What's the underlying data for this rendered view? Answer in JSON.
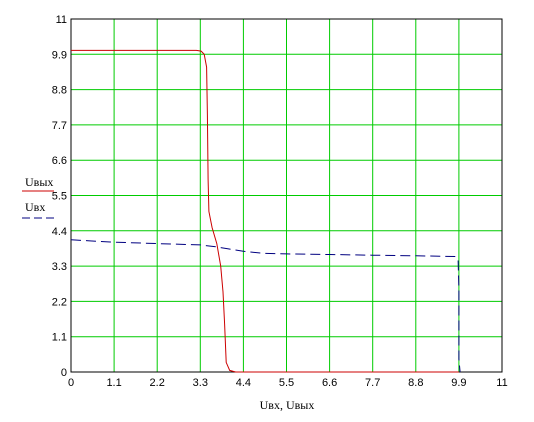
{
  "chart_data": {
    "type": "line",
    "xlabel": "Uвх, Uвых",
    "xlim": [
      0,
      11
    ],
    "ylim": [
      0,
      11
    ],
    "xticks": [
      "0",
      "1.1",
      "2.2",
      "3.3",
      "4.4",
      "5.5",
      "6.6",
      "7.7",
      "8.8",
      "9.9",
      "11"
    ],
    "yticks": [
      "0",
      "1.1",
      "2.2",
      "3.3",
      "4.4",
      "5.5",
      "6.6",
      "7.7",
      "8.8",
      "9.9",
      "11"
    ],
    "grid": true,
    "grid_color": "#00cc00",
    "legend_placement": "left",
    "series": [
      {
        "name": "Uвых",
        "color": "#cc0000",
        "style": "solid",
        "points": [
          [
            0,
            10.02
          ],
          [
            3.2,
            10.02
          ],
          [
            3.32,
            10.0
          ],
          [
            3.4,
            9.9
          ],
          [
            3.46,
            9.5
          ],
          [
            3.48,
            8.0
          ],
          [
            3.5,
            6.0
          ],
          [
            3.52,
            5.0
          ],
          [
            3.6,
            4.5
          ],
          [
            3.72,
            4.0
          ],
          [
            3.82,
            3.3
          ],
          [
            3.88,
            2.5
          ],
          [
            3.92,
            1.5
          ],
          [
            3.96,
            0.3
          ],
          [
            4.05,
            0.05
          ],
          [
            4.2,
            0.0
          ],
          [
            9.9,
            0.0
          ]
        ]
      },
      {
        "name": "Uвх",
        "color": "#000080",
        "style": "dashed",
        "points": [
          [
            0,
            4.12
          ],
          [
            1.0,
            4.05
          ],
          [
            2.2,
            4.0
          ],
          [
            3.3,
            3.96
          ],
          [
            3.7,
            3.9
          ],
          [
            4.0,
            3.84
          ],
          [
            4.4,
            3.76
          ],
          [
            4.9,
            3.7
          ],
          [
            5.5,
            3.68
          ],
          [
            6.6,
            3.66
          ],
          [
            7.7,
            3.64
          ],
          [
            8.8,
            3.62
          ],
          [
            9.8,
            3.6
          ],
          [
            9.88,
            3.5
          ],
          [
            9.9,
            2.6
          ],
          [
            9.9,
            0.4
          ],
          [
            9.93,
            0.0
          ]
        ]
      }
    ]
  }
}
